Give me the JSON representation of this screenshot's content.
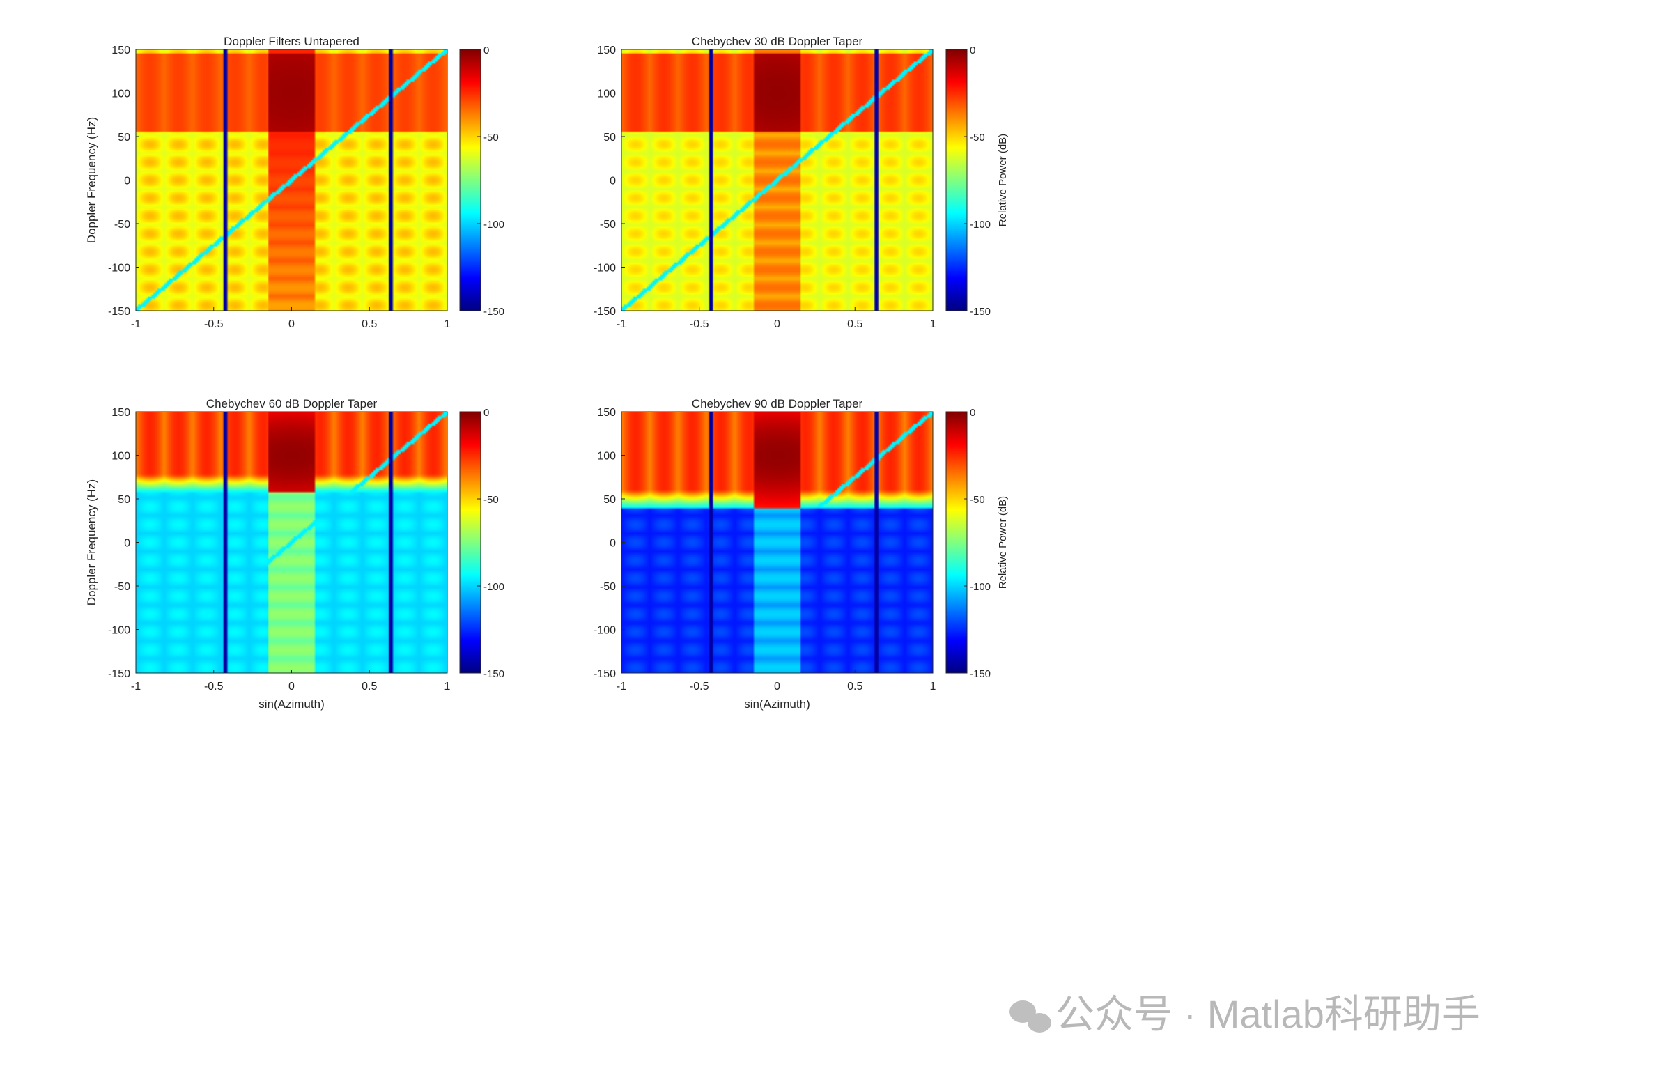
{
  "figure": {
    "watermark": "公众号 · Matlab科研助手",
    "watermark_icon": "wechat-icon"
  },
  "chart_data": [
    {
      "type": "heatmap",
      "title": "Doppler Filters Untapered",
      "xlabel": "",
      "ylabel": "Doppler Frequency (Hz)",
      "xlim": [
        -1,
        1
      ],
      "ylim": [
        -150,
        150
      ],
      "xticks": [
        -1,
        -0.5,
        0,
        0.5,
        1
      ],
      "xtick_labels": [
        "-1",
        "-0.5",
        "0",
        "0.5",
        "1"
      ],
      "yticks": [
        -150,
        -100,
        -50,
        0,
        50,
        100,
        150
      ],
      "ytick_labels": [
        "-150",
        "-100",
        "-50",
        "0",
        "50",
        "100",
        "150"
      ],
      "colorbar": {
        "label": "",
        "ticks": [
          -150,
          -100,
          -50,
          0
        ],
        "tick_labels": [
          "-150",
          "-100",
          "-50",
          "0"
        ],
        "clim": [
          -150,
          0
        ],
        "colormap": "jet"
      },
      "model": {
        "taper_db": 0,
        "peak_x": 0,
        "peak_y": 100,
        "null_columns_x": [
          -0.42,
          0.64
        ],
        "clutter_ridge": true,
        "ridge_slope_hz_per_unit": 150
      }
    },
    {
      "type": "heatmap",
      "title": "Chebychev 30 dB Doppler Taper",
      "xlabel": "",
      "ylabel": "",
      "xlim": [
        -1,
        1
      ],
      "ylim": [
        -150,
        150
      ],
      "xticks": [
        -1,
        -0.5,
        0,
        0.5,
        1
      ],
      "xtick_labels": [
        "-1",
        "-0.5",
        "0",
        "0.5",
        "1"
      ],
      "yticks": [
        -150,
        -100,
        -50,
        0,
        50,
        100,
        150
      ],
      "ytick_labels": [
        "-150",
        "-100",
        "-50",
        "0",
        "50",
        "100",
        "150"
      ],
      "colorbar": {
        "label": "Relative Power (dB)",
        "ticks": [
          -150,
          -100,
          -50,
          0
        ],
        "tick_labels": [
          "-150",
          "-100",
          "-50",
          "0"
        ],
        "clim": [
          -150,
          0
        ],
        "colormap": "jet"
      },
      "model": {
        "taper_db": 30,
        "peak_x": 0,
        "peak_y": 100,
        "null_columns_x": [
          -0.42,
          0.64
        ],
        "clutter_ridge": true,
        "ridge_slope_hz_per_unit": 150
      }
    },
    {
      "type": "heatmap",
      "title": "Chebychev 60 dB Doppler Taper",
      "xlabel": "sin(Azimuth)",
      "ylabel": "Doppler Frequency (Hz)",
      "xlim": [
        -1,
        1
      ],
      "ylim": [
        -150,
        150
      ],
      "xticks": [
        -1,
        -0.5,
        0,
        0.5,
        1
      ],
      "xtick_labels": [
        "-1",
        "-0.5",
        "0",
        "0.5",
        "1"
      ],
      "yticks": [
        -150,
        -100,
        -50,
        0,
        50,
        100,
        150
      ],
      "ytick_labels": [
        "-150",
        "-100",
        "-50",
        "0",
        "50",
        "100",
        "150"
      ],
      "colorbar": {
        "label": "",
        "ticks": [
          -150,
          -100,
          -50,
          0
        ],
        "tick_labels": [
          "-150",
          "-100",
          "-50",
          "0"
        ],
        "clim": [
          -150,
          0
        ],
        "colormap": "jet"
      },
      "model": {
        "taper_db": 60,
        "peak_x": 0,
        "peak_y": 100,
        "mainlobe_floor_y": 58,
        "null_columns_x": [
          -0.42,
          0.64
        ],
        "clutter_ridge": true,
        "ridge_slope_hz_per_unit": 150
      }
    },
    {
      "type": "heatmap",
      "title": "Chebychev 90 dB Doppler Taper",
      "xlabel": "sin(Azimuth)",
      "ylabel": "",
      "xlim": [
        -1,
        1
      ],
      "ylim": [
        -150,
        150
      ],
      "xticks": [
        -1,
        -0.5,
        0,
        0.5,
        1
      ],
      "xtick_labels": [
        "-1",
        "-0.5",
        "0",
        "0.5",
        "1"
      ],
      "yticks": [
        -150,
        -100,
        -50,
        0,
        50,
        100,
        150
      ],
      "ytick_labels": [
        "-150",
        "-100",
        "-50",
        "0",
        "50",
        "100",
        "150"
      ],
      "colorbar": {
        "label": "Relative Power (dB)",
        "ticks": [
          -150,
          -100,
          -50,
          0
        ],
        "tick_labels": [
          "-150",
          "-100",
          "-50",
          "0"
        ],
        "clim": [
          -150,
          0
        ],
        "colormap": "jet"
      },
      "model": {
        "taper_db": 90,
        "peak_x": 0,
        "peak_y": 100,
        "mainlobe_floor_y": 40,
        "null_columns_x": [
          -0.42,
          0.64
        ],
        "clutter_ridge": true,
        "ridge_slope_hz_per_unit": 150
      }
    }
  ]
}
